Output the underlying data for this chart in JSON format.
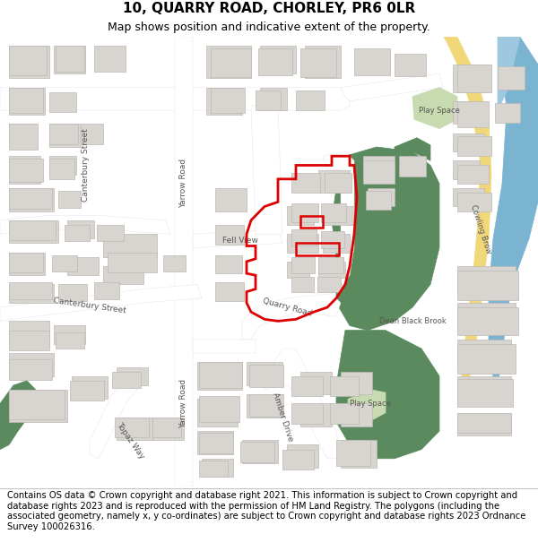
{
  "title": "10, QUARRY ROAD, CHORLEY, PR6 0LR",
  "subtitle": "Map shows position and indicative extent of the property.",
  "footer": "Contains OS data © Crown copyright and database right 2021. This information is subject to Crown copyright and database rights 2023 and is reproduced with the permission of HM Land Registry. The polygons (including the associated geometry, namely x, y co-ordinates) are subject to Crown copyright and database rights 2023 Ordnance Survey 100026316.",
  "map_bg": "#f0eeeb",
  "road_color": "#ffffff",
  "building_color": "#d8d5d0",
  "building_edge": "#bcb9b4",
  "green_dark": "#5a8a5e",
  "green_light": "#c8dab0",
  "water_color": "#9ec8e0",
  "river_color": "#7ab4d0",
  "yellow_road": "#f0d878",
  "red_outline": "#dd0000",
  "title_fontsize": 11,
  "subtitle_fontsize": 9,
  "footer_fontsize": 7.2,
  "label_color": "#555555",
  "label_fontsize": 6.5
}
